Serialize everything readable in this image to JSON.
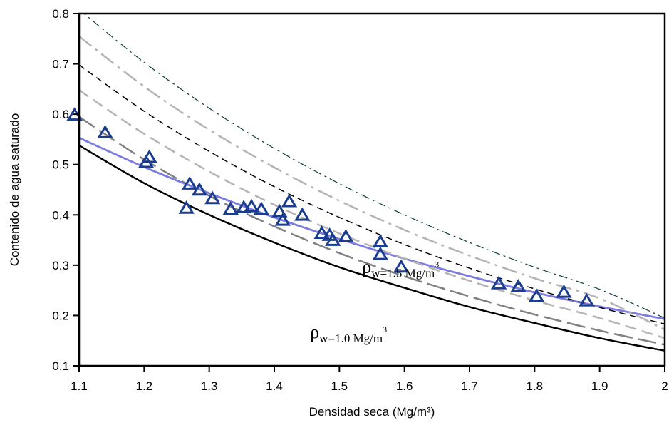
{
  "chart_data": {
    "type": "scatter",
    "xlabel": "Densidad seca (Mg/m³)",
    "ylabel": "Contenido de agua saturado",
    "xlim": [
      1.1,
      2.0
    ],
    "ylim": [
      0.1,
      0.8
    ],
    "xticks": [
      "1.1",
      "1.2",
      "1.3",
      "1.4",
      "1.5",
      "1.6",
      "1.7",
      "1.8",
      "1.9",
      "2"
    ],
    "yticks": [
      "0.1",
      "0.2",
      "0.3",
      "0.4",
      "0.5",
      "0.6",
      "0.7",
      "0.8"
    ],
    "grid": false,
    "legend": "none",
    "colors": {
      "points": "#1a3d8f",
      "fit": "#7b7be0"
    },
    "annotations": [
      {
        "symbol": "ρ",
        "sub": "w=1.5 Mg/m",
        "sup": "3",
        "x": 1.535,
        "y": 0.285
      },
      {
        "symbol": "ρ",
        "sub": "w=1.0 Mg/m",
        "sup": "3",
        "x": 1.455,
        "y": 0.155
      }
    ],
    "points": [
      {
        "x": 1.093,
        "y": 0.597
      },
      {
        "x": 1.14,
        "y": 0.562
      },
      {
        "x": 1.203,
        "y": 0.503
      },
      {
        "x": 1.208,
        "y": 0.513
      },
      {
        "x": 1.265,
        "y": 0.412
      },
      {
        "x": 1.27,
        "y": 0.46
      },
      {
        "x": 1.285,
        "y": 0.448
      },
      {
        "x": 1.305,
        "y": 0.431
      },
      {
        "x": 1.333,
        "y": 0.41
      },
      {
        "x": 1.353,
        "y": 0.413
      },
      {
        "x": 1.365,
        "y": 0.415
      },
      {
        "x": 1.38,
        "y": 0.41
      },
      {
        "x": 1.408,
        "y": 0.405
      },
      {
        "x": 1.413,
        "y": 0.388
      },
      {
        "x": 1.423,
        "y": 0.425
      },
      {
        "x": 1.443,
        "y": 0.398
      },
      {
        "x": 1.473,
        "y": 0.362
      },
      {
        "x": 1.485,
        "y": 0.358
      },
      {
        "x": 1.49,
        "y": 0.348
      },
      {
        "x": 1.51,
        "y": 0.355
      },
      {
        "x": 1.563,
        "y": 0.345
      },
      {
        "x": 1.563,
        "y": 0.32
      },
      {
        "x": 1.595,
        "y": 0.295
      },
      {
        "x": 1.745,
        "y": 0.262
      },
      {
        "x": 1.775,
        "y": 0.256
      },
      {
        "x": 1.803,
        "y": 0.237
      },
      {
        "x": 1.845,
        "y": 0.245
      },
      {
        "x": 1.88,
        "y": 0.228
      }
    ],
    "series": [
      {
        "id": "rho-1.0",
        "color": "#000000",
        "width": 2.5,
        "dash": "",
        "x": [
          1.1,
          1.2,
          1.3,
          1.4,
          1.5,
          1.6,
          1.7,
          1.8,
          1.9,
          2.0
        ],
        "y": [
          0.538,
          0.463,
          0.4,
          0.345,
          0.296,
          0.255,
          0.217,
          0.185,
          0.155,
          0.13
        ]
      },
      {
        "id": "dash-darkgray",
        "color": "#808080",
        "width": 2.5,
        "dash": "26 8",
        "x": [
          1.1,
          1.2,
          1.3,
          1.4,
          1.5,
          1.6,
          1.7,
          1.8,
          1.9,
          2.0
        ],
        "y": [
          0.595,
          0.51,
          0.438,
          0.377,
          0.324,
          0.278,
          0.238,
          0.202,
          0.17,
          0.142
        ]
      },
      {
        "id": "fit",
        "color": "#7b7be0",
        "width": 2.8,
        "dash": "",
        "x": [
          1.1,
          1.2,
          1.3,
          1.4,
          1.5,
          1.6,
          1.7,
          1.8,
          1.9,
          2.0
        ],
        "y": [
          0.553,
          0.495,
          0.443,
          0.395,
          0.352,
          0.313,
          0.278,
          0.246,
          0.218,
          0.193
        ]
      },
      {
        "id": "dash-lightgray",
        "color": "#b4b4b4",
        "width": 2.5,
        "dash": "16 8",
        "x": [
          1.1,
          1.2,
          1.3,
          1.4,
          1.5,
          1.6,
          1.7,
          1.8,
          1.9,
          2.0
        ],
        "y": [
          0.648,
          0.561,
          0.486,
          0.42,
          0.363,
          0.313,
          0.269,
          0.23,
          0.195,
          0.155
        ]
      },
      {
        "id": "dash-black",
        "color": "#000000",
        "width": 1.5,
        "dash": "9 6",
        "x": [
          1.1,
          1.2,
          1.3,
          1.4,
          1.5,
          1.6,
          1.7,
          1.8,
          1.9,
          2.0
        ],
        "y": [
          0.698,
          0.606,
          0.526,
          0.456,
          0.395,
          0.341,
          0.294,
          0.253,
          0.216,
          0.183
        ]
      },
      {
        "id": "dashdot-lightgray",
        "color": "#b4b4b4",
        "width": 2.5,
        "dash": "22 7 4 7",
        "x": [
          1.1,
          1.2,
          1.3,
          1.4,
          1.5,
          1.6,
          1.7,
          1.8,
          1.9,
          2.0
        ],
        "y": [
          0.755,
          0.655,
          0.569,
          0.494,
          0.428,
          0.37,
          0.319,
          0.274,
          0.234,
          0.172
        ]
      },
      {
        "id": "rho-1.5",
        "color": "#0b3d3d",
        "width": 1.2,
        "dash": "12 5 3 5",
        "x": [
          1.1,
          1.2,
          1.3,
          1.4,
          1.5,
          1.6,
          1.7,
          1.8,
          1.9,
          2.0
        ],
        "y": [
          0.808,
          0.703,
          0.612,
          0.532,
          0.462,
          0.4,
          0.345,
          0.296,
          0.252,
          0.195
        ]
      }
    ]
  }
}
